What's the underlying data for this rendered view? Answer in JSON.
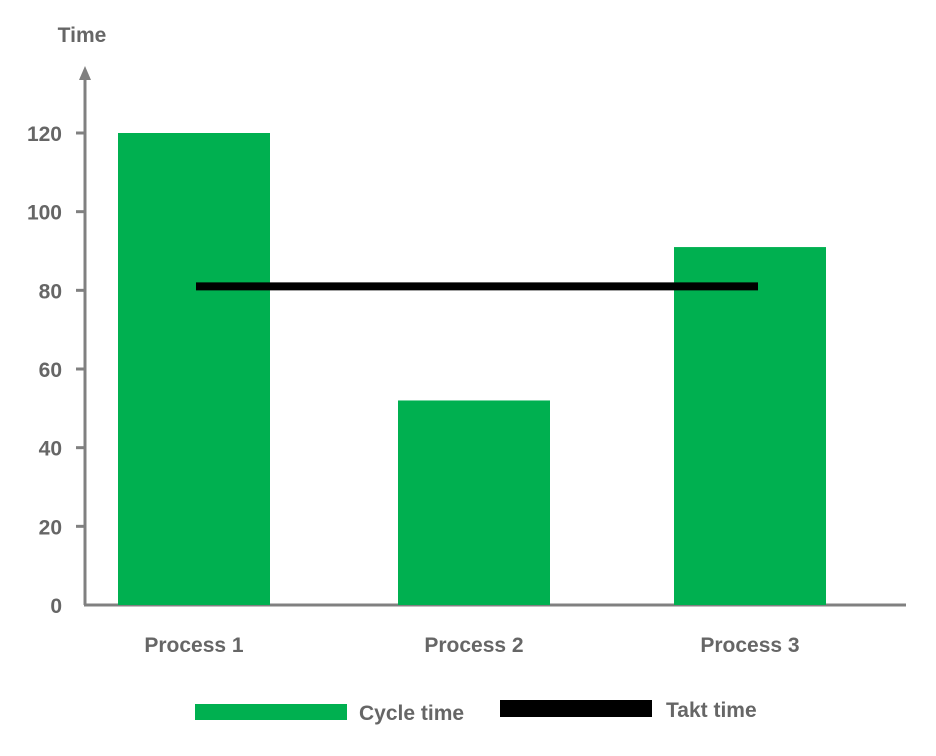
{
  "chart_data": {
    "type": "bar",
    "title": "",
    "xlabel": "",
    "ylabel": "Time",
    "ylim": [
      0,
      120
    ],
    "yticks": [
      0,
      20,
      40,
      60,
      80,
      100,
      120
    ],
    "categories": [
      "Process 1",
      "Process 2",
      "Process 3"
    ],
    "series": [
      {
        "name": "Cycle time",
        "type": "bar",
        "color": "#00b050",
        "values": [
          120,
          52,
          91
        ]
      },
      {
        "name": "Takt time",
        "type": "line",
        "color": "#000000",
        "values": [
          81,
          81,
          81
        ]
      }
    ],
    "grid": false,
    "legend": "bottom"
  }
}
